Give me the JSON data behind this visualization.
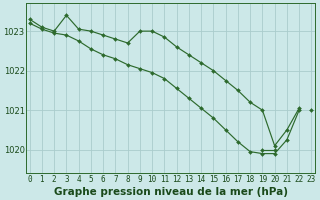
{
  "title": "Graphe pression niveau de la mer (hPa)",
  "background_color": "#cce8e8",
  "grid_color": "#aacccc",
  "line_color": "#2d6a2d",
  "x_ticks": [
    0,
    1,
    2,
    3,
    4,
    5,
    6,
    7,
    8,
    9,
    10,
    11,
    12,
    13,
    14,
    15,
    16,
    17,
    18,
    19,
    20,
    21,
    22,
    23
  ],
  "y_ticks": [
    1020,
    1021,
    1022,
    1023
  ],
  "ylim": [
    1019.4,
    1023.7
  ],
  "xlim": [
    -0.3,
    23.3
  ],
  "s1": [
    1023.3,
    1023.1,
    1023.0,
    1023.4,
    1023.05,
    1023.0,
    1022.9,
    1022.8,
    1022.7,
    1023.0,
    1023.0,
    1022.85,
    1022.6,
    1022.4,
    1022.2,
    1022.0,
    1021.75,
    1021.5,
    1021.2,
    1021.0,
    1020.1,
    1020.5,
    1021.05,
    null
  ],
  "s2": [
    1023.2,
    1023.05,
    1022.95,
    1022.9,
    1022.75,
    1022.55,
    1022.4,
    1022.3,
    1022.15,
    1022.05,
    1021.95,
    1021.8,
    1021.55,
    1021.3,
    1021.05,
    1020.8,
    1020.5,
    1020.2,
    1019.95,
    1019.9,
    1019.9,
    1020.25,
    1021.0,
    null
  ],
  "s3": [
    null,
    null,
    null,
    null,
    null,
    null,
    null,
    null,
    null,
    null,
    null,
    null,
    null,
    null,
    null,
    null,
    null,
    null,
    null,
    1020.0,
    1020.0,
    null,
    null,
    1021.0
  ],
  "title_fontsize": 7.5,
  "tick_fontsize": 5.5,
  "ytick_fontsize": 6.0
}
